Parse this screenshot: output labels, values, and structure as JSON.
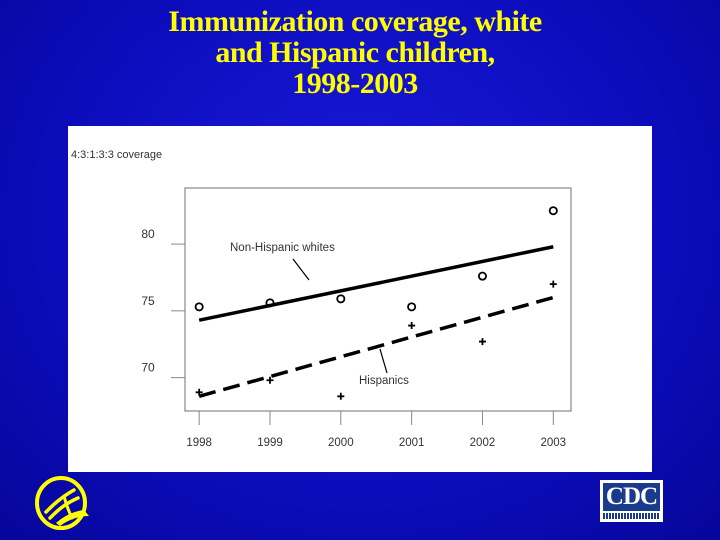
{
  "slide": {
    "title_lines": [
      "Immunization coverage, white",
      "and Hispanic children,",
      "1998-2003"
    ],
    "title_color": "#ffff00",
    "background_color": "#0d0dbf"
  },
  "logos": {
    "left": "hhs-eagle-icon",
    "right_text": "CDC"
  },
  "chart_data": {
    "type": "scatter",
    "ylabel": "4:3:1:3:3 coverage",
    "x": [
      1998,
      1999,
      2000,
      2001,
      2002,
      2003
    ],
    "x_tick_labels": [
      "1998",
      "1999",
      "2000",
      "2001",
      "2002",
      "2003"
    ],
    "y_ticks": [
      70,
      75,
      80
    ],
    "ylim": [
      67.5,
      84.2
    ],
    "xlim": [
      1997.8,
      2003.25
    ],
    "grid": false,
    "series": [
      {
        "name": "Non-Hispanic whites",
        "marker": "circle",
        "values": [
          75.3,
          75.6,
          75.9,
          75.3,
          77.6,
          82.5
        ],
        "trend": {
          "style": "solid",
          "start": [
            1998,
            74.3
          ],
          "end": [
            2003,
            79.8
          ]
        }
      },
      {
        "name": "Hispanics",
        "marker": "plus",
        "values": [
          68.9,
          69.8,
          68.6,
          73.9,
          72.7,
          77.0
        ],
        "trend": {
          "style": "dashed",
          "start": [
            1998,
            68.6
          ],
          "end": [
            2003,
            76.0
          ]
        }
      }
    ]
  }
}
